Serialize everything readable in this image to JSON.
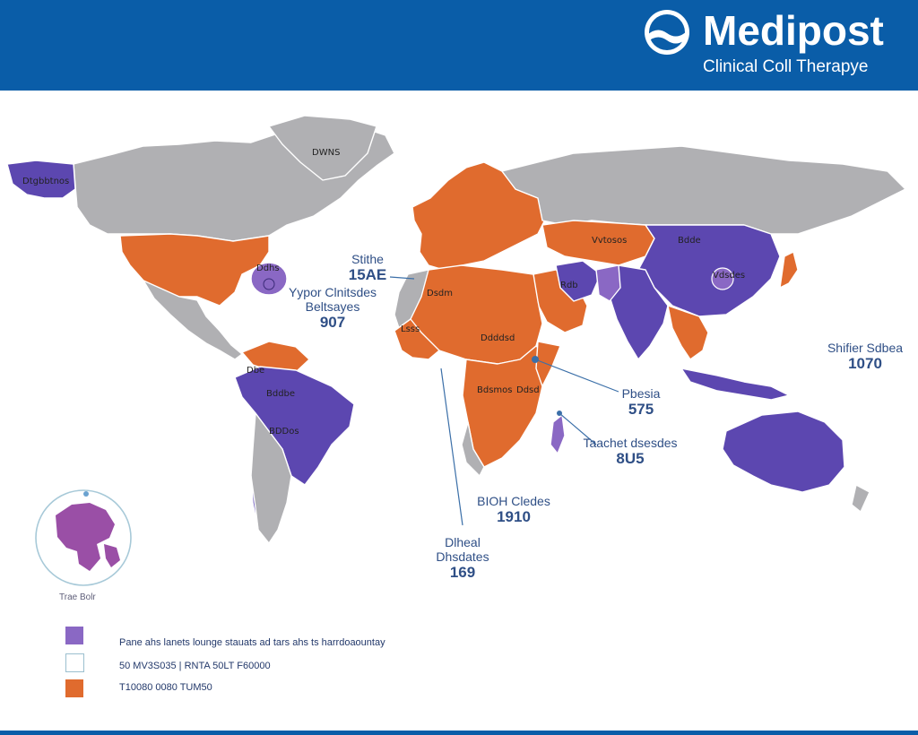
{
  "header": {
    "brand": "Medipost",
    "tagline": "Clinical Coll Therapye"
  },
  "colors": {
    "header": "#0a5da8",
    "orange": "#e06b2e",
    "purple": "#5c47b0",
    "gray": "#b0b0b3",
    "globe": "#9a4fa6"
  },
  "map_labels": [
    {
      "title": "Stithe",
      "value": "15AE"
    },
    {
      "title": "Yypor Clnitsdes Beltsayes",
      "value": "907"
    },
    {
      "title": "Shifier Sdbea",
      "value": "1070"
    },
    {
      "title": "Pbesia",
      "value": "575"
    },
    {
      "title": "Taachet dsesdes",
      "value": "8U5"
    },
    {
      "title": "BIOH Cledes",
      "value": "1910"
    },
    {
      "title": "Dlheal Dhsdates",
      "value": "169"
    }
  ],
  "region_tags": [
    "DWNS",
    "Dtgbbtnos",
    "Ddhs",
    "Dbe",
    "Bddbe",
    "BDDos",
    "Dsdm",
    "Vvtosos",
    "Bdde",
    "Ddddsd",
    "Bdsmos",
    "Ddsd",
    "Vdsdes",
    "Lsss",
    "Rdb"
  ],
  "globe_caption": "Trae Bolr",
  "legend": [
    {
      "color": "#8a68c4",
      "label": "Pane ahs lanets lounge stauats ad tars ahs ts harrdoaountay"
    },
    {
      "color": "#ffffff",
      "label": "50 MV3S035 | RNTA 50LT F60000"
    },
    {
      "color": "#e06b2e",
      "label": "T10080 0080 TUM50"
    }
  ]
}
